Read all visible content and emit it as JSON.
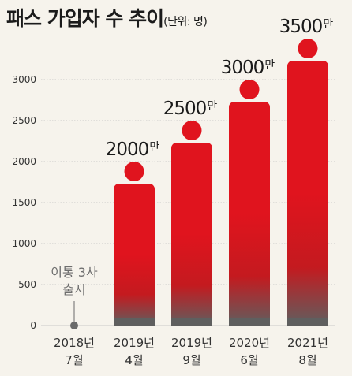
{
  "title": "패스 가입자 수 추이",
  "unit_note": "(단위: 명)",
  "colors": {
    "bar_red": "#e0141e",
    "bar_dark": "#5f5f5f",
    "grid": "#bdbdbd",
    "marker": "#6a6a6a"
  },
  "chart_data": {
    "type": "bar",
    "title": "패스 가입자 수 추이",
    "unit": "(단위: 명)",
    "categories": [
      [
        "2018년",
        "7월"
      ],
      [
        "2019년",
        "4월"
      ],
      [
        "2019년",
        "9월"
      ],
      [
        "2020년",
        "6월"
      ],
      [
        "2021년",
        "8월"
      ]
    ],
    "values": [
      0,
      2000,
      2500,
      3000,
      3500
    ],
    "value_labels": [
      {
        "num": "",
        "unit": ""
      },
      {
        "num": "2000",
        "unit": "만"
      },
      {
        "num": "2500",
        "unit": "만"
      },
      {
        "num": "3000",
        "unit": "만"
      },
      {
        "num": "3500",
        "unit": "만"
      }
    ],
    "yticks": [
      0,
      500,
      1000,
      1500,
      2000,
      2500,
      3000
    ],
    "ylim": [
      0,
      3500
    ],
    "grid": true,
    "annotation": {
      "lines": [
        "이통 3사",
        "출시"
      ],
      "category_index": 0
    }
  }
}
